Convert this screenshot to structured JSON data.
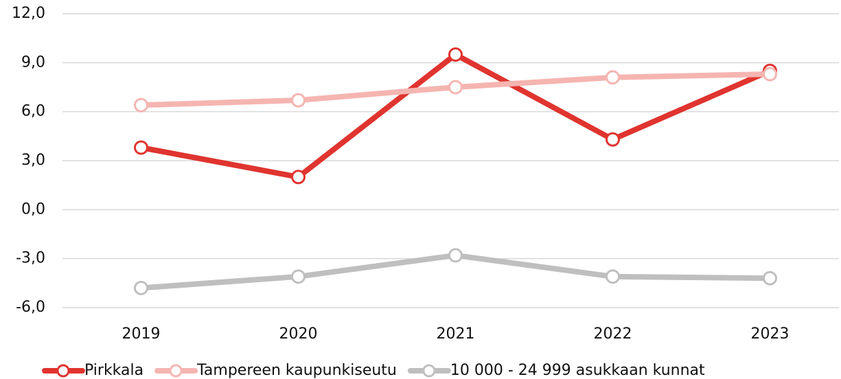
{
  "chart_data": {
    "type": "line",
    "categories": [
      "2019",
      "2020",
      "2021",
      "2022",
      "2023"
    ],
    "series": [
      {
        "name": "Pirkkala",
        "color": "#e0342f",
        "values": [
          3.8,
          2.0,
          9.5,
          4.3,
          8.5
        ]
      },
      {
        "name": "Tampereen kaupunkiseutu",
        "color": "#f5b5b1",
        "values": [
          6.4,
          6.7,
          7.5,
          8.1,
          8.3
        ]
      },
      {
        "name": "10 000 - 24 999 asukkaan kunnat",
        "color": "#bfbfbf",
        "values": [
          -4.8,
          -4.1,
          -2.8,
          -4.1,
          -4.2
        ]
      }
    ],
    "ylim": [
      -6,
      12
    ],
    "yticks": [
      {
        "value": -6,
        "label": "-6,0"
      },
      {
        "value": -3,
        "label": "-3,0"
      },
      {
        "value": 0,
        "label": "0,0"
      },
      {
        "value": 3,
        "label": "3,0"
      },
      {
        "value": 6,
        "label": "6,0"
      },
      {
        "value": 9,
        "label": "9,0"
      },
      {
        "value": 12,
        "label": "12,0"
      }
    ],
    "grid": true,
    "legend": "bottom"
  }
}
